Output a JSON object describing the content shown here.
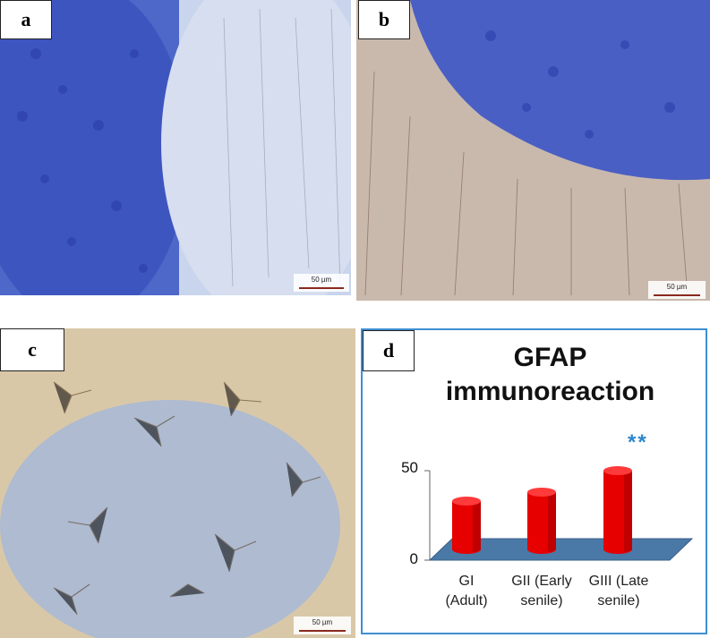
{
  "panels": {
    "a": {
      "label": "a",
      "scale": "50 µm"
    },
    "b": {
      "label": "b",
      "scale": "50 µm"
    },
    "c": {
      "label": "c",
      "scale": "50 µm"
    },
    "d": {
      "label": "d"
    }
  },
  "colors": {
    "bar": "#e60000",
    "floor": "#4a79a8",
    "frame": "#3d8fd1",
    "significance": "#2e86c9"
  },
  "chart_data": {
    "type": "bar",
    "title_lines": [
      "GFAP",
      "immunoreaction"
    ],
    "categories": [
      [
        "GI",
        "(Adult)"
      ],
      [
        "GII (Early",
        "senile)"
      ],
      [
        "GIII (Late",
        "senile)"
      ]
    ],
    "values": [
      27,
      32,
      44
    ],
    "ylim": [
      0,
      50
    ],
    "yticks": [
      "0",
      "50"
    ],
    "annotations": [
      {
        "category_index": 2,
        "text": "**"
      }
    ],
    "grid": false,
    "legend": "none"
  }
}
